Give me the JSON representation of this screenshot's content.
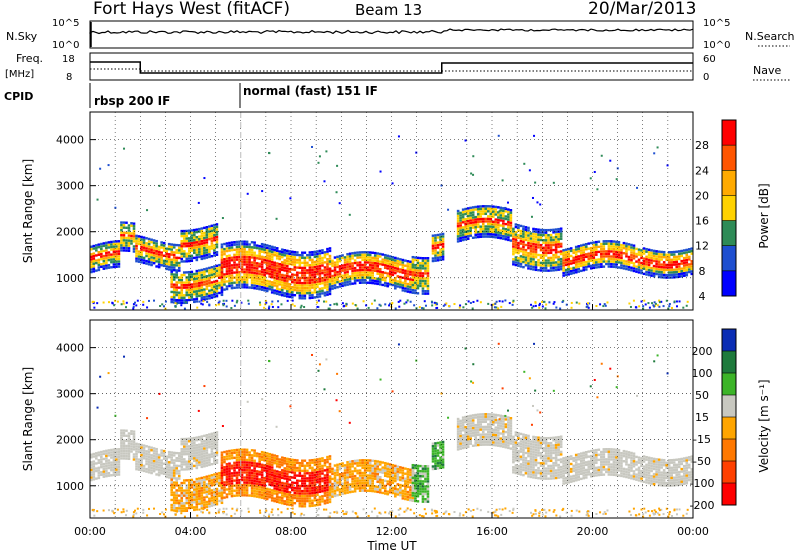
{
  "header": {
    "title": "Fort Hays West (fitACF)",
    "beam": "Beam 13",
    "date": "20/Mar/2013"
  },
  "param_panel": {
    "nsky_label": "N.Sky",
    "nsky_ticks": [
      "10^5",
      "10^0"
    ],
    "nsearch_label": "N.Search",
    "nsearch_ticks": [
      "10^5",
      "10^0"
    ],
    "freq_label": "Freq.",
    "freq_unit": "[MHz]",
    "freq_ticks": [
      "18",
      "8"
    ],
    "nave_label": "Nave",
    "nave_ticks": [
      "60",
      "0"
    ],
    "cpid_label": "CPID",
    "modes": [
      {
        "label": "rbsp 200 IF",
        "start_hour": 0.0
      },
      {
        "label": "normal (fast) 151 IF",
        "start_hour": 6.0
      }
    ]
  },
  "colors": {
    "grid": "#9a9a9a",
    "scatter_gray": "#c8c8c0"
  },
  "chart_data": [
    {
      "type": "heatmap",
      "name": "power-panel",
      "ylabel": "Slant Range [km]",
      "xlim_hours": [
        0,
        24
      ],
      "ylim": [
        300,
        4600
      ],
      "yticks": [
        1000,
        2000,
        3000,
        4000
      ],
      "colorbar": {
        "label": "Power [dB]",
        "ticks": [
          "28",
          "24",
          "20",
          "16",
          "12",
          "8",
          "4"
        ],
        "colors": [
          "#ff0000",
          "#ff5500",
          "#ffaa00",
          "#ffd200",
          "#2e8b57",
          "#1e4fd0",
          "#0000ff"
        ]
      }
    },
    {
      "type": "heatmap",
      "name": "velocity-panel",
      "ylabel": "Slant Range [km]",
      "xlim_hours": [
        0,
        24
      ],
      "ylim": [
        300,
        4600
      ],
      "yticks": [
        1000,
        2000,
        3000,
        4000
      ],
      "colorbar": {
        "label": "Velocity [m s⁻¹]",
        "ticks": [
          "200",
          "100",
          "50",
          "15",
          "-15",
          "-50",
          "-100",
          "-200"
        ],
        "colors": [
          "#0a2db4",
          "#1e7a3c",
          "#3cb428",
          "#c8c8c0",
          "#ffa500",
          "#ff7800",
          "#ff4000",
          "#ff0000"
        ]
      }
    }
  ],
  "xaxis": {
    "label": "Time UT",
    "ticks": [
      "00:00",
      "04:00",
      "08:00",
      "12:00",
      "16:00",
      "20:00",
      "00:00"
    ]
  }
}
